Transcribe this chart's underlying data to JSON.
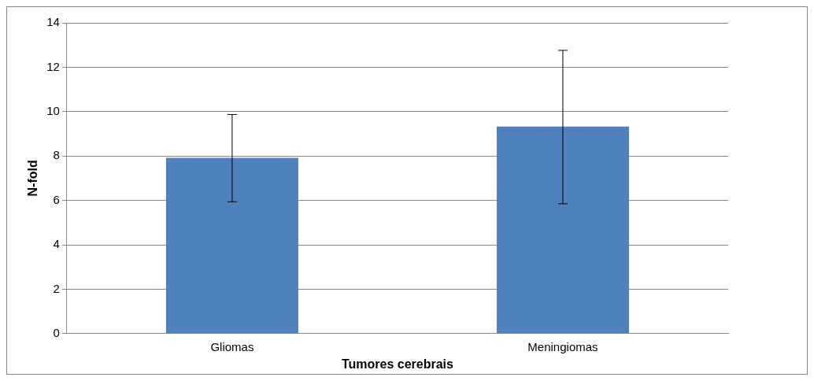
{
  "chart_data": {
    "type": "bar",
    "xlabel": "Tumores cerebrais",
    "ylabel": "N-fold",
    "categories": [
      "Gliomas",
      "Meningiomas"
    ],
    "values": [
      7.92,
      9.33
    ],
    "color": "#4f81bd",
    "errors": [
      [
        5.94,
        9.87
      ],
      [
        5.85,
        12.76
      ]
    ],
    "ylim": [
      0,
      14
    ],
    "yticks": [
      0,
      2,
      4,
      6,
      8,
      10,
      12,
      14
    ],
    "grid": "y",
    "legend": false
  }
}
